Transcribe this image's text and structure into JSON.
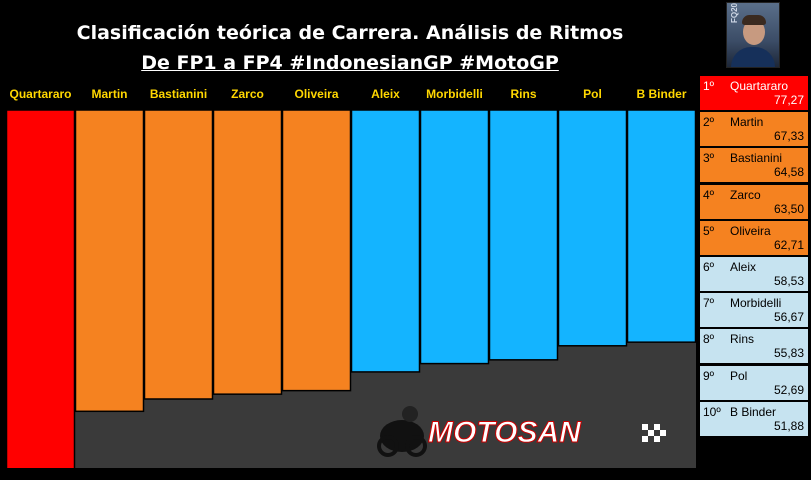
{
  "title": "Clasificación teórica de Carrera. Análisis de Ritmos",
  "subtitle": "De FP1 a FP4 #IndonesianGP #MotoGP",
  "avatar_icon": "rider-portrait",
  "avatar_label": "FQ20",
  "watermark": "MOTOSAN",
  "colors": {
    "red": "#ff0000",
    "orange": "#f58220",
    "blue": "#14b4ff",
    "floor": "#3a3a3a",
    "label": "#ffd700",
    "rank_light": "#c6e3f0"
  },
  "chart_data": {
    "type": "bar",
    "categories": [
      "Quartararo",
      "Martin",
      "Bastianini",
      "Zarco",
      "Oliveira",
      "Aleix",
      "Morbidelli",
      "Rins",
      "Pol",
      "B Binder"
    ],
    "values": [
      77.27,
      67.33,
      64.58,
      63.5,
      62.71,
      58.53,
      56.67,
      55.83,
      52.69,
      51.88
    ],
    "bar_colors": [
      "red",
      "orange",
      "orange",
      "orange",
      "orange",
      "blue",
      "blue",
      "blue",
      "blue",
      "blue"
    ],
    "bars_hang_from_top": true
  },
  "ranking": [
    {
      "pos": "1º",
      "name": "Quartararo",
      "value": "77,27",
      "style": "red"
    },
    {
      "pos": "2º",
      "name": "Martin",
      "value": "67,33",
      "style": "orange"
    },
    {
      "pos": "3º",
      "name": "Bastianini",
      "value": "64,58",
      "style": "orange"
    },
    {
      "pos": "4º",
      "name": "Zarco",
      "value": "63,50",
      "style": "orange"
    },
    {
      "pos": "5º",
      "name": "Oliveira",
      "value": "62,71",
      "style": "orange"
    },
    {
      "pos": "6º",
      "name": "Aleix",
      "value": "58,53",
      "style": "light"
    },
    {
      "pos": "7º",
      "name": "Morbidelli",
      "value": "56,67",
      "style": "light"
    },
    {
      "pos": "8º",
      "name": "Rins",
      "value": "55,83",
      "style": "light"
    },
    {
      "pos": "9º",
      "name": "Pol",
      "value": "52,69",
      "style": "light"
    },
    {
      "pos": "10º",
      "name": "B Binder",
      "value": "51,88",
      "style": "light"
    }
  ]
}
